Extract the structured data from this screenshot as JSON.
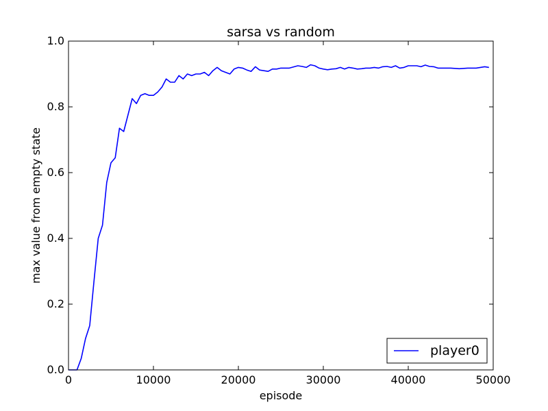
{
  "chart_data": {
    "type": "line",
    "title": "sarsa vs random",
    "xlabel": "episode",
    "ylabel": "max value from empty state",
    "xlim": [
      0,
      50000
    ],
    "ylim": [
      0.0,
      1.0
    ],
    "x_ticks": [
      0,
      10000,
      20000,
      30000,
      40000,
      50000
    ],
    "x_tick_labels": [
      "0",
      "10000",
      "20000",
      "30000",
      "40000",
      "50000"
    ],
    "y_ticks": [
      0.0,
      0.2,
      0.4,
      0.6,
      0.8,
      1.0
    ],
    "y_tick_labels": [
      "0.0",
      "0.2",
      "0.4",
      "0.6",
      "0.8",
      "1.0"
    ],
    "grid": false,
    "legend_position": "bottom-right",
    "series": [
      {
        "name": "player0",
        "color": "#0000ff",
        "x": [
          0,
          500,
          1000,
          1500,
          2000,
          2500,
          3000,
          3500,
          4000,
          4500,
          5000,
          5500,
          6000,
          6500,
          7000,
          7500,
          8000,
          8500,
          9000,
          9500,
          10000,
          10500,
          11000,
          11500,
          12000,
          12500,
          13000,
          13500,
          14000,
          14500,
          15000,
          15500,
          16000,
          16500,
          17000,
          17500,
          18000,
          18500,
          19000,
          19500,
          20000,
          20500,
          21000,
          21500,
          22000,
          22500,
          23000,
          23500,
          24000,
          24500,
          25000,
          26000,
          27000,
          27500,
          28000,
          28500,
          29000,
          29500,
          30000,
          30500,
          31000,
          31500,
          32000,
          32500,
          33000,
          33500,
          34000,
          34500,
          35000,
          35500,
          36000,
          36500,
          37000,
          37500,
          38000,
          38500,
          39000,
          39500,
          40000,
          40500,
          41000,
          41500,
          42000,
          42500,
          43000,
          43500,
          44000,
          44500,
          45000,
          46000,
          47000,
          48000,
          48500,
          49000,
          49500
        ],
        "values": [
          0.0,
          0.0,
          0.0,
          0.035,
          0.095,
          0.135,
          0.27,
          0.4,
          0.44,
          0.57,
          0.63,
          0.645,
          0.735,
          0.725,
          0.775,
          0.825,
          0.81,
          0.835,
          0.84,
          0.835,
          0.835,
          0.845,
          0.86,
          0.885,
          0.875,
          0.875,
          0.895,
          0.885,
          0.9,
          0.895,
          0.9,
          0.9,
          0.905,
          0.895,
          0.91,
          0.92,
          0.91,
          0.905,
          0.9,
          0.915,
          0.92,
          0.918,
          0.912,
          0.908,
          0.922,
          0.912,
          0.91,
          0.908,
          0.915,
          0.915,
          0.918,
          0.918,
          0.925,
          0.923,
          0.92,
          0.928,
          0.925,
          0.918,
          0.915,
          0.913,
          0.915,
          0.916,
          0.92,
          0.915,
          0.92,
          0.918,
          0.915,
          0.916,
          0.918,
          0.918,
          0.92,
          0.918,
          0.922,
          0.923,
          0.92,
          0.925,
          0.918,
          0.92,
          0.925,
          0.925,
          0.925,
          0.922,
          0.927,
          0.923,
          0.922,
          0.918,
          0.918,
          0.918,
          0.918,
          0.916,
          0.918,
          0.918,
          0.92,
          0.922,
          0.92
        ]
      }
    ]
  }
}
